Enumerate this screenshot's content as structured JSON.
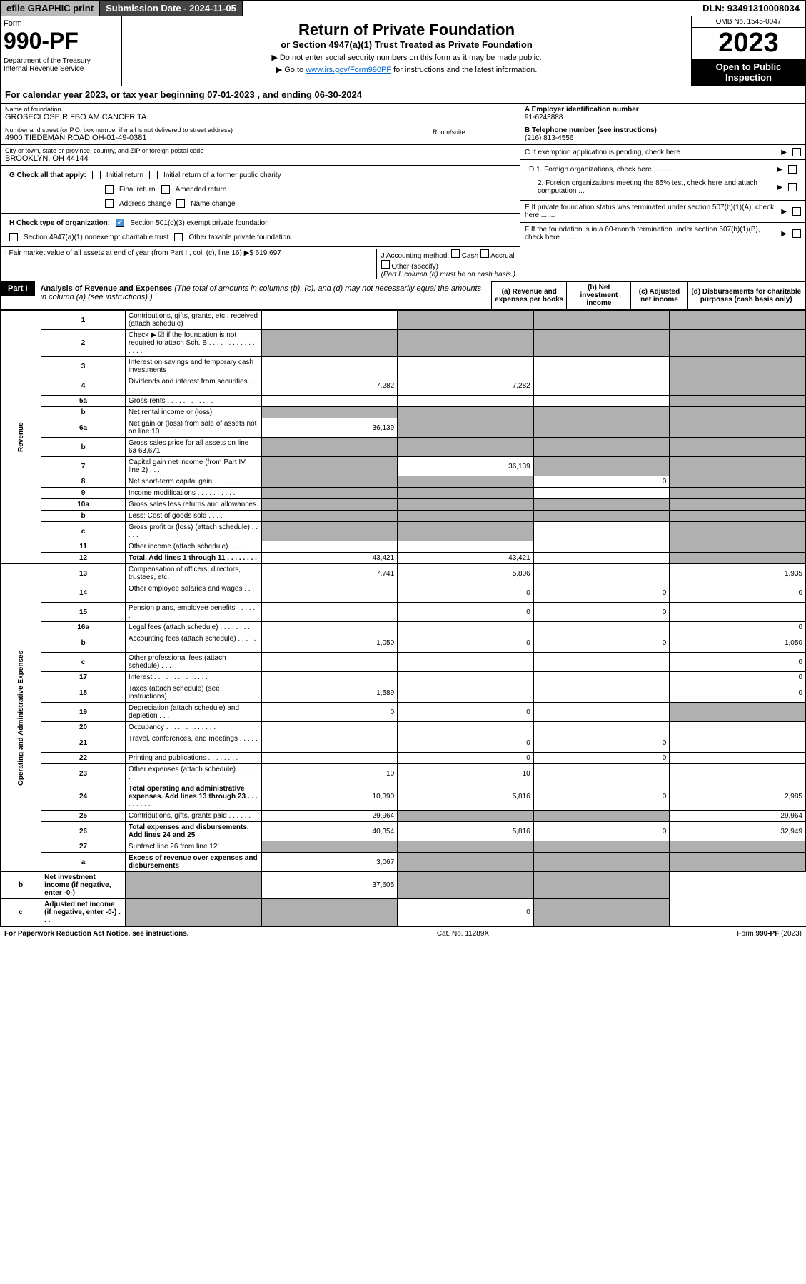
{
  "topbar": {
    "efile": "efile GRAPHIC print",
    "subdate_label": "Submission Date - 2024-11-05",
    "dln": "DLN: 93491310008034"
  },
  "header": {
    "form_label": "Form",
    "form_num": "990-PF",
    "dept": "Department of the Treasury\nInternal Revenue Service",
    "title": "Return of Private Foundation",
    "subtitle": "or Section 4947(a)(1) Trust Treated as Private Foundation",
    "note1": "▶ Do not enter social security numbers on this form as it may be made public.",
    "note2_pre": "▶ Go to ",
    "note2_link": "www.irs.gov/Form990PF",
    "note2_post": " for instructions and the latest information.",
    "omb": "OMB No. 1545-0047",
    "year": "2023",
    "open": "Open to Public Inspection"
  },
  "calyear": "For calendar year 2023, or tax year beginning 07-01-2023                             , and ending 06-30-2024",
  "org": {
    "name_label": "Name of foundation",
    "name": "GROSECLOSE R FBO AM CANCER TA",
    "addr_label": "Number and street (or P.O. box number if mail is not delivered to street address)",
    "addr": "4900 TIEDEMAN ROAD OH-01-49-0381",
    "room_label": "Room/suite",
    "city_label": "City or town, state or province, country, and ZIP or foreign postal code",
    "city": "BROOKLYN, OH  44144",
    "ein_label": "A Employer identification number",
    "ein": "91-6243888",
    "phone_label": "B Telephone number (see instructions)",
    "phone": "(216) 813-4556",
    "c_label": "C If exemption application is pending, check here",
    "d1": "D 1. Foreign organizations, check here............",
    "d2": "2. Foreign organizations meeting the 85% test, check here and attach computation ...",
    "e_label": "E If private foundation status was terminated under section 507(b)(1)(A), check here .......",
    "f_label": "F If the foundation is in a 60-month termination under section 507(b)(1)(B), check here .......",
    "g_label": "G Check all that apply:",
    "g_opts": [
      "Initial return",
      "Initial return of a former public charity",
      "Final return",
      "Amended return",
      "Address change",
      "Name change"
    ],
    "h_label": "H Check type of organization:",
    "h1": "Section 501(c)(3) exempt private foundation",
    "h2": "Section 4947(a)(1) nonexempt charitable trust",
    "h3": "Other taxable private foundation",
    "i_label": "I Fair market value of all assets at end of year (from Part II, col. (c), line 16) ▶$",
    "i_val": "619,697",
    "j_label": "J Accounting method:",
    "j_cash": "Cash",
    "j_accrual": "Accrual",
    "j_other": "Other (specify)",
    "j_note": "(Part I, column (d) must be on cash basis.)"
  },
  "part1": {
    "label": "Part I",
    "title": "Analysis of Revenue and Expenses",
    "title_note": "(The total of amounts in columns (b), (c), and (d) may not necessarily equal the amounts in column (a) (see instructions).)",
    "col_a": "(a) Revenue and expenses per books",
    "col_b": "(b) Net investment income",
    "col_c": "(c) Adjusted net income",
    "col_d": "(d) Disbursements for charitable purposes (cash basis only)"
  },
  "side_rev": "Revenue",
  "side_exp": "Operating and Administrative Expenses",
  "lines": [
    {
      "n": "1",
      "d": "Contributions, gifts, grants, etc., received (attach schedule)",
      "a": "",
      "b": "g",
      "c": "g",
      "dd": "g"
    },
    {
      "n": "2",
      "d": "Check ▶ ☑ if the foundation is not required to attach Sch. B    .  .  .  .  .  .  .  .  .  .  .  .  .  .  .  .",
      "a": "g",
      "b": "g",
      "c": "g",
      "dd": "g"
    },
    {
      "n": "3",
      "d": "Interest on savings and temporary cash investments",
      "a": "",
      "b": "",
      "c": "",
      "dd": "g"
    },
    {
      "n": "4",
      "d": "Dividends and interest from securities  .  .  .",
      "a": "7,282",
      "b": "7,282",
      "c": "",
      "dd": "g"
    },
    {
      "n": "5a",
      "d": "Gross rents  .  .  .  .  .  .  .  .  .  .  .  .",
      "a": "",
      "b": "",
      "c": "",
      "dd": "g"
    },
    {
      "n": "b",
      "d": "Net rental income or (loss)",
      "a": "g",
      "b": "g",
      "c": "g",
      "dd": "g"
    },
    {
      "n": "6a",
      "d": "Net gain or (loss) from sale of assets not on line 10",
      "a": "36,139",
      "b": "g",
      "c": "g",
      "dd": "g"
    },
    {
      "n": "b",
      "d": "Gross sales price for all assets on line 6a               63,671",
      "a": "g",
      "b": "g",
      "c": "g",
      "dd": "g"
    },
    {
      "n": "7",
      "d": "Capital gain net income (from Part IV, line 2)  .  .  .",
      "a": "g",
      "b": "36,139",
      "c": "g",
      "dd": "g"
    },
    {
      "n": "8",
      "d": "Net short-term capital gain  .  .  .  .  .  .  .",
      "a": "g",
      "b": "g",
      "c": "0",
      "dd": "g"
    },
    {
      "n": "9",
      "d": "Income modifications .  .  .  .  .  .  .  .  .  .",
      "a": "g",
      "b": "g",
      "c": "",
      "dd": "g"
    },
    {
      "n": "10a",
      "d": "Gross sales less returns and allowances",
      "a": "g",
      "b": "g",
      "c": "g",
      "dd": "g"
    },
    {
      "n": "b",
      "d": "Less: Cost of goods sold  .  .  .  .",
      "a": "g",
      "b": "g",
      "c": "g",
      "dd": "g"
    },
    {
      "n": "c",
      "d": "Gross profit or (loss) (attach schedule)  .  .  .  .  .",
      "a": "g",
      "b": "g",
      "c": "",
      "dd": "g"
    },
    {
      "n": "11",
      "d": "Other income (attach schedule)  .  .  .  .  .  .",
      "a": "",
      "b": "",
      "c": "",
      "dd": "g"
    },
    {
      "n": "12",
      "d": "Total. Add lines 1 through 11  .  .  .  .  .  .  .  .",
      "a": "43,421",
      "b": "43,421",
      "c": "",
      "dd": "g",
      "bold": true
    },
    {
      "n": "13",
      "d": "Compensation of officers, directors, trustees, etc.",
      "a": "7,741",
      "b": "5,806",
      "c": "",
      "dd": "1,935"
    },
    {
      "n": "14",
      "d": "Other employee salaries and wages  .  .  .  .  .",
      "a": "",
      "b": "0",
      "c": "0",
      "dd": "0"
    },
    {
      "n": "15",
      "d": "Pension plans, employee benefits  .  .  .  .  .  .",
      "a": "",
      "b": "0",
      "c": "0",
      "dd": ""
    },
    {
      "n": "16a",
      "d": "Legal fees (attach schedule) .  .  .  .  .  .  .  .",
      "a": "",
      "b": "",
      "c": "",
      "dd": "0"
    },
    {
      "n": "b",
      "d": "Accounting fees (attach schedule) .  .  .  .  .  .",
      "a": "1,050",
      "b": "0",
      "c": "0",
      "dd": "1,050"
    },
    {
      "n": "c",
      "d": "Other professional fees (attach schedule)  .  .  .",
      "a": "",
      "b": "",
      "c": "",
      "dd": "0"
    },
    {
      "n": "17",
      "d": "Interest .  .  .  .  .  .  .  .  .  .  .  .  .  .",
      "a": "",
      "b": "",
      "c": "",
      "dd": "0"
    },
    {
      "n": "18",
      "d": "Taxes (attach schedule) (see instructions)  .  .  .",
      "a": "1,589",
      "b": "",
      "c": "",
      "dd": "0"
    },
    {
      "n": "19",
      "d": "Depreciation (attach schedule) and depletion  .  .  .",
      "a": "0",
      "b": "0",
      "c": "",
      "dd": "g"
    },
    {
      "n": "20",
      "d": "Occupancy .  .  .  .  .  .  .  .  .  .  .  .  .",
      "a": "",
      "b": "",
      "c": "",
      "dd": ""
    },
    {
      "n": "21",
      "d": "Travel, conferences, and meetings .  .  .  .  .  .",
      "a": "",
      "b": "0",
      "c": "0",
      "dd": ""
    },
    {
      "n": "22",
      "d": "Printing and publications .  .  .  .  .  .  .  .  .",
      "a": "",
      "b": "0",
      "c": "0",
      "dd": ""
    },
    {
      "n": "23",
      "d": "Other expenses (attach schedule) .  .  .  .  .  .",
      "a": "10",
      "b": "10",
      "c": "",
      "dd": ""
    },
    {
      "n": "24",
      "d": "Total operating and administrative expenses. Add lines 13 through 23  .  .  .  .  .  .  .  .  .",
      "a": "10,390",
      "b": "5,816",
      "c": "0",
      "dd": "2,985",
      "bold": true
    },
    {
      "n": "25",
      "d": "Contributions, gifts, grants paid  .  .  .  .  .  .",
      "a": "29,964",
      "b": "g",
      "c": "g",
      "dd": "29,964"
    },
    {
      "n": "26",
      "d": "Total expenses and disbursements. Add lines 24 and 25",
      "a": "40,354",
      "b": "5,816",
      "c": "0",
      "dd": "32,949",
      "bold": true
    },
    {
      "n": "27",
      "d": "Subtract line 26 from line 12:",
      "a": "g",
      "b": "g",
      "c": "g",
      "dd": "g"
    },
    {
      "n": "a",
      "d": "Excess of revenue over expenses and disbursements",
      "a": "3,067",
      "b": "g",
      "c": "g",
      "dd": "g",
      "bold": true
    },
    {
      "n": "b",
      "d": "Net investment income (if negative, enter -0-)",
      "a": "g",
      "b": "37,605",
      "c": "g",
      "dd": "g",
      "bold": true
    },
    {
      "n": "c",
      "d": "Adjusted net income (if negative, enter -0-)  .  .  .",
      "a": "g",
      "b": "g",
      "c": "0",
      "dd": "g",
      "bold": true
    }
  ],
  "footer": {
    "left": "For Paperwork Reduction Act Notice, see instructions.",
    "mid": "Cat. No. 11289X",
    "right": "Form 990-PF (2023)"
  }
}
